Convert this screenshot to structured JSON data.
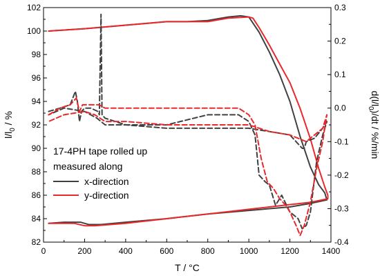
{
  "chart_data": {
    "type": "line",
    "xlabel": "T / °C",
    "ylabel_left": {
      "base": "l/l",
      "sub": "0",
      "rest": " / %"
    },
    "ylabel_right": {
      "pre": "d(l/l",
      "sub": "0",
      "post": ")/dt / %/min"
    },
    "xlim": [
      0,
      1400
    ],
    "ylim_left": [
      82,
      102
    ],
    "ylim_right": [
      -0.4,
      0.3
    ],
    "xticks": [
      "0",
      "200",
      "400",
      "600",
      "800",
      "1000",
      "1200",
      "1400"
    ],
    "yticks_left": [
      "82",
      "84",
      "86",
      "88",
      "90",
      "92",
      "94",
      "96",
      "98",
      "100",
      "102"
    ],
    "yticks_right": [
      "-0.4",
      "-0.3",
      "-0.2",
      "-0.1",
      "0.0",
      "0.1",
      "0.2",
      "0.3"
    ],
    "legend": {
      "placement": "bottom-left",
      "title_lines": [
        "17-4PH tape rolled up",
        "measured along"
      ],
      "entries": [
        "x-direction",
        "y-direction"
      ]
    },
    "series": [
      {
        "name": "x-direction",
        "axis": "left",
        "style": "solid",
        "color": "#404040",
        "points": [
          [
            25,
            100.0
          ],
          [
            200,
            100.2
          ],
          [
            400,
            100.5
          ],
          [
            600,
            100.8
          ],
          [
            700,
            100.8
          ],
          [
            800,
            100.9
          ],
          [
            900,
            101.2
          ],
          [
            960,
            101.3
          ],
          [
            1000,
            101.2
          ],
          [
            1050,
            99.9
          ],
          [
            1100,
            98.2
          ],
          [
            1150,
            96.3
          ],
          [
            1200,
            94.0
          ],
          [
            1250,
            91.0
          ],
          [
            1300,
            88.4
          ],
          [
            1340,
            86.9
          ],
          [
            1370,
            86.2
          ],
          [
            1380,
            85.6
          ],
          [
            1300,
            85.3
          ],
          [
            1200,
            85.0
          ],
          [
            1000,
            84.7
          ],
          [
            800,
            84.4
          ],
          [
            600,
            84.0
          ],
          [
            400,
            83.7
          ],
          [
            280,
            83.5
          ],
          [
            220,
            83.5
          ],
          [
            180,
            83.7
          ],
          [
            100,
            83.7
          ],
          [
            25,
            83.6
          ]
        ]
      },
      {
        "name": "y-direction",
        "axis": "left",
        "style": "solid",
        "color": "#e8282b",
        "points": [
          [
            25,
            100.0
          ],
          [
            200,
            100.2
          ],
          [
            400,
            100.5
          ],
          [
            600,
            100.8
          ],
          [
            800,
            100.8
          ],
          [
            900,
            101.1
          ],
          [
            1000,
            101.2
          ],
          [
            1020,
            101.1
          ],
          [
            1050,
            100.3
          ],
          [
            1100,
            98.8
          ],
          [
            1150,
            97.2
          ],
          [
            1200,
            95.6
          ],
          [
            1250,
            93.4
          ],
          [
            1300,
            90.8
          ],
          [
            1340,
            88.3
          ],
          [
            1370,
            86.7
          ],
          [
            1385,
            86.0
          ],
          [
            1385,
            85.7
          ],
          [
            1300,
            85.4
          ],
          [
            1200,
            85.2
          ],
          [
            1000,
            84.8
          ],
          [
            800,
            84.4
          ],
          [
            600,
            84.0
          ],
          [
            400,
            83.6
          ],
          [
            250,
            83.4
          ],
          [
            200,
            83.4
          ],
          [
            150,
            83.6
          ],
          [
            25,
            83.6
          ]
        ]
      },
      {
        "name": "x-direction",
        "axis": "right",
        "style": "dashed",
        "color": "#404040",
        "points": [
          [
            25,
            -0.01
          ],
          [
            80,
            0.0
          ],
          [
            130,
            0.01
          ],
          [
            155,
            0.05
          ],
          [
            165,
            0.02
          ],
          [
            175,
            -0.04
          ],
          [
            185,
            -0.01
          ],
          [
            200,
            0.0
          ],
          [
            230,
            0.0
          ],
          [
            265,
            -0.01
          ],
          [
            272,
            -0.02
          ],
          [
            280,
            0.28
          ],
          [
            285,
            -0.02
          ],
          [
            300,
            -0.03
          ],
          [
            400,
            -0.05
          ],
          [
            600,
            -0.05
          ],
          [
            800,
            -0.02
          ],
          [
            950,
            -0.02
          ],
          [
            1000,
            -0.04
          ],
          [
            1030,
            -0.08
          ],
          [
            1050,
            -0.2
          ],
          [
            1080,
            -0.22
          ],
          [
            1100,
            -0.23
          ],
          [
            1130,
            -0.29
          ],
          [
            1160,
            -0.26
          ],
          [
            1200,
            -0.31
          ],
          [
            1240,
            -0.33
          ],
          [
            1260,
            -0.36
          ],
          [
            1280,
            -0.35
          ],
          [
            1300,
            -0.31
          ],
          [
            1330,
            -0.16
          ],
          [
            1360,
            -0.08
          ],
          [
            1380,
            -0.04
          ],
          [
            1360,
            -0.06
          ],
          [
            1320,
            -0.09
          ],
          [
            1280,
            -0.1
          ],
          [
            1270,
            -0.12
          ],
          [
            1260,
            -0.12
          ],
          [
            1200,
            -0.08
          ],
          [
            1100,
            -0.07
          ],
          [
            1000,
            -0.06
          ],
          [
            800,
            -0.06
          ],
          [
            600,
            -0.06
          ],
          [
            400,
            -0.05
          ],
          [
            300,
            -0.05
          ],
          [
            260,
            -0.03
          ],
          [
            200,
            -0.01
          ],
          [
            100,
            0.0
          ],
          [
            25,
            -0.02
          ]
        ]
      },
      {
        "name": "y-direction",
        "axis": "right",
        "style": "dashed",
        "color": "#e8282b",
        "points": [
          [
            25,
            -0.02
          ],
          [
            80,
            0.0
          ],
          [
            130,
            0.01
          ],
          [
            160,
            0.03
          ],
          [
            175,
            -0.01
          ],
          [
            190,
            0.01
          ],
          [
            230,
            0.01
          ],
          [
            270,
            0.01
          ],
          [
            300,
            0.0
          ],
          [
            400,
            0.0
          ],
          [
            600,
            0.0
          ],
          [
            800,
            0.0
          ],
          [
            950,
            0.0
          ],
          [
            1000,
            -0.02
          ],
          [
            1030,
            -0.05
          ],
          [
            1060,
            -0.15
          ],
          [
            1090,
            -0.22
          ],
          [
            1120,
            -0.24
          ],
          [
            1150,
            -0.27
          ],
          [
            1180,
            -0.29
          ],
          [
            1200,
            -0.31
          ],
          [
            1230,
            -0.35
          ],
          [
            1250,
            -0.38
          ],
          [
            1270,
            -0.35
          ],
          [
            1300,
            -0.28
          ],
          [
            1330,
            -0.18
          ],
          [
            1360,
            -0.1
          ],
          [
            1380,
            -0.02
          ],
          [
            1360,
            -0.06
          ],
          [
            1320,
            -0.08
          ],
          [
            1280,
            -0.1
          ],
          [
            1200,
            -0.08
          ],
          [
            1100,
            -0.07
          ],
          [
            1000,
            -0.05
          ],
          [
            800,
            -0.05
          ],
          [
            600,
            -0.05
          ],
          [
            400,
            -0.04
          ],
          [
            300,
            -0.04
          ],
          [
            250,
            -0.02
          ],
          [
            200,
            -0.01
          ],
          [
            100,
            -0.02
          ],
          [
            25,
            -0.04
          ]
        ]
      }
    ]
  }
}
